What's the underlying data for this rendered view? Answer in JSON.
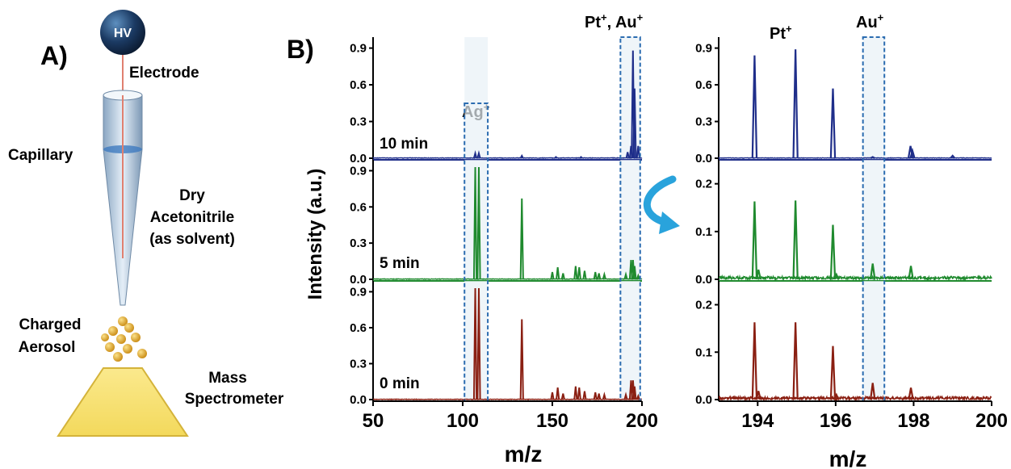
{
  "panel_a": {
    "label": "A)",
    "hv_label": "HV",
    "electrode_label": "Electrode",
    "capillary_label": "Capillary",
    "solvent_line1": "Dry",
    "solvent_line2": "Acetonitrile",
    "solvent_line3": "(as solvent)",
    "aerosol_line1": "Charged",
    "aerosol_line2": "Aerosol",
    "ms_line1": "Mass",
    "ms_line2": "Spectrometer"
  },
  "panel_b": {
    "label": "B)",
    "ylabel": "Intensity (a.u.)",
    "xlabel_full": "m/z",
    "xlabel_zoom": "m/z",
    "box_labels": {
      "ag": "Ag",
      "pt_au": "Pt",
      "pt_au_rest": ", Au",
      "pt": "Pt",
      "au": "Au",
      "sup": "+"
    }
  },
  "colors": {
    "t10": "#1f2e8a",
    "t5": "#1f8a2e",
    "t0": "#8a1f12",
    "highlight_box": "#2b6cb0",
    "arrow": "#29a3dc",
    "hv_ball": "#1b3a63",
    "cone": "#a9c3da",
    "ms_box": "#f5e27a",
    "droplet": "#e0a52a"
  },
  "chart_data": [
    {
      "type": "line",
      "title": "",
      "xlabel": "m/z",
      "ylabel": "Intensity (a.u.)",
      "xlim": [
        50,
        200
      ],
      "xticks": [
        "50",
        "100",
        "150",
        "200"
      ],
      "highlight_ranges": [
        [
          101,
          114
        ],
        [
          188,
          199
        ]
      ],
      "series": [
        {
          "name": "10 min",
          "color": "#1f2e8a",
          "ylim": [
            0,
            0.95
          ],
          "yticks": [
            "0.0",
            "0.3",
            "0.6",
            "0.9"
          ],
          "peaks": [
            [
              107,
              0.04
            ],
            [
              109,
              0.04
            ],
            [
              133,
              0.02
            ],
            [
              152,
              0.01
            ],
            [
              166,
              0.01
            ],
            [
              192,
              0.05
            ],
            [
              193.9,
              0.1
            ],
            [
              194.97,
              0.88
            ],
            [
              195.9,
              0.57
            ],
            [
              197.9,
              0.1
            ]
          ]
        },
        {
          "name": "5 min",
          "color": "#1f8a2e",
          "ylim": [
            0,
            0.95
          ],
          "yticks": [
            "0.0",
            "0.3",
            "0.6",
            "0.9"
          ],
          "peaks": [
            [
              107,
              0.93
            ],
            [
              109,
              0.93
            ],
            [
              133,
              0.67
            ],
            [
              150,
              0.06
            ],
            [
              153,
              0.1
            ],
            [
              156,
              0.05
            ],
            [
              163,
              0.11
            ],
            [
              165,
              0.1
            ],
            [
              168,
              0.07
            ],
            [
              174,
              0.06
            ],
            [
              176,
              0.05
            ],
            [
              179,
              0.04
            ],
            [
              191,
              0.04
            ],
            [
              193.9,
              0.16
            ],
            [
              195,
              0.16
            ],
            [
              195.9,
              0.11
            ],
            [
              197.9,
              0.03
            ]
          ]
        },
        {
          "name": "0 min",
          "color": "#8a1f12",
          "ylim": [
            0,
            0.95
          ],
          "yticks": [
            "0.0",
            "0.3",
            "0.6",
            "0.9"
          ],
          "peaks": [
            [
              107,
              0.93
            ],
            [
              109,
              0.93
            ],
            [
              133,
              0.67
            ],
            [
              150,
              0.06
            ],
            [
              153,
              0.1
            ],
            [
              156,
              0.05
            ],
            [
              163,
              0.11
            ],
            [
              165,
              0.1
            ],
            [
              168,
              0.07
            ],
            [
              174,
              0.06
            ],
            [
              176,
              0.05
            ],
            [
              179,
              0.04
            ],
            [
              191,
              0.04
            ],
            [
              193.9,
              0.16
            ],
            [
              195,
              0.16
            ],
            [
              195.9,
              0.11
            ],
            [
              197.9,
              0.03
            ]
          ]
        }
      ]
    },
    {
      "type": "line",
      "title": "",
      "xlabel": "m/z",
      "xlim": [
        193,
        200
      ],
      "xticks": [
        "194",
        "196",
        "198",
        "200"
      ],
      "highlight_ranges": [
        [
          196.7,
          197.25
        ]
      ],
      "series": [
        {
          "name": "10 min",
          "color": "#1f2e8a",
          "ylim": [
            0,
            0.95
          ],
          "yticks": [
            "0.0",
            "0.3",
            "0.6",
            "0.9"
          ],
          "peaks": [
            [
              193.92,
              0.84
            ],
            [
              194.97,
              0.89
            ],
            [
              195.93,
              0.57
            ],
            [
              196.95,
              0.01
            ],
            [
              197.92,
              0.1
            ],
            [
              197.97,
              0.06
            ],
            [
              199.0,
              0.02
            ]
          ]
        },
        {
          "name": "5 min",
          "color": "#1f8a2e",
          "ylim": [
            0,
            0.24
          ],
          "yticks": [
            "0.0",
            "0.1",
            "0.2"
          ],
          "peaks": [
            [
              193.92,
              0.163
            ],
            [
              194.02,
              0.02
            ],
            [
              194.97,
              0.165
            ],
            [
              195.93,
              0.114
            ],
            [
              196.02,
              0.01
            ],
            [
              196.95,
              0.033
            ],
            [
              197.93,
              0.028
            ]
          ]
        },
        {
          "name": "0 min",
          "color": "#8a1f12",
          "ylim": [
            0,
            0.24
          ],
          "yticks": [
            "0.0",
            "0.1",
            "0.2"
          ],
          "peaks": [
            [
              193.92,
              0.163
            ],
            [
              194.02,
              0.018
            ],
            [
              194.97,
              0.163
            ],
            [
              195.93,
              0.113
            ],
            [
              196.02,
              0.01
            ],
            [
              196.95,
              0.035
            ],
            [
              197.93,
              0.025
            ]
          ]
        }
      ]
    }
  ]
}
